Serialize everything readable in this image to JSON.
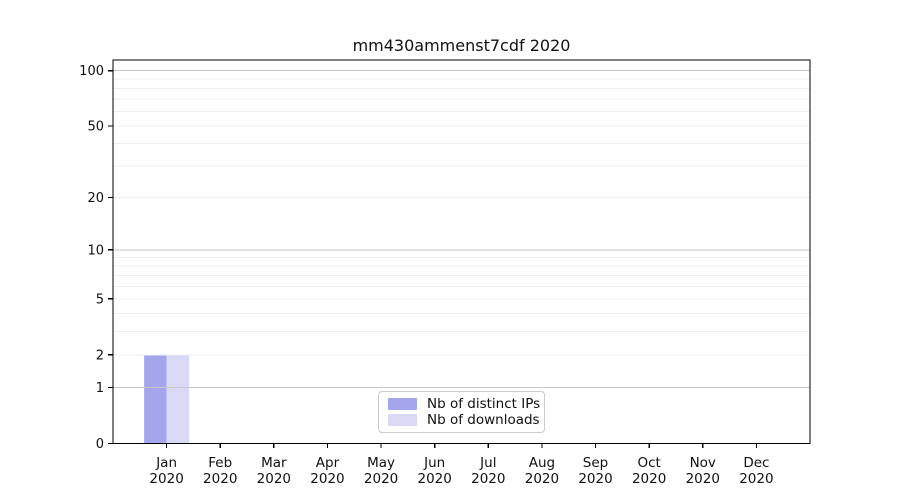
{
  "title": "mm430ammenst7cdf 2020",
  "legend": {
    "items": [
      {
        "label": "Nb of distinct IPs",
        "color": "#a5a5ee"
      },
      {
        "label": "Nb of downloads",
        "color": "#d9d9f6"
      }
    ]
  },
  "x_axis": {
    "months": [
      "Jan",
      "Feb",
      "Mar",
      "Apr",
      "May",
      "Jun",
      "Jul",
      "Aug",
      "Sep",
      "Oct",
      "Nov",
      "Dec"
    ],
    "year": "2020"
  },
  "y_axis": {
    "ticks": [
      0,
      1,
      2,
      5,
      10,
      20,
      50,
      100
    ],
    "major_grid_values": [
      1,
      10,
      100
    ],
    "minor_grid_values": [
      2,
      3,
      4,
      5,
      6,
      7,
      8,
      9,
      20,
      30,
      40,
      50,
      60,
      70,
      80,
      90
    ]
  },
  "chart_data": {
    "type": "bar",
    "title": "mm430ammenst7cdf 2020",
    "categories": [
      "Jan 2020",
      "Feb 2020",
      "Mar 2020",
      "Apr 2020",
      "May 2020",
      "Jun 2020",
      "Jul 2020",
      "Aug 2020",
      "Sep 2020",
      "Oct 2020",
      "Nov 2020",
      "Dec 2020"
    ],
    "series": [
      {
        "name": "Nb of distinct IPs",
        "color": "#a5a5ee",
        "values": [
          2,
          0,
          0,
          0,
          0,
          0,
          0,
          0,
          0,
          0,
          0,
          0
        ]
      },
      {
        "name": "Nb of downloads",
        "color": "#d9d9f6",
        "values": [
          2,
          0,
          0,
          0,
          0,
          0,
          0,
          0,
          0,
          0,
          0,
          0
        ]
      }
    ],
    "xlabel": "",
    "ylabel": "",
    "yscale": "log1p",
    "ylim": [
      0,
      115
    ],
    "yticks": [
      0,
      1,
      2,
      5,
      10,
      20,
      50,
      100
    ],
    "grid": true,
    "legend_position": "lower center"
  },
  "colors": {
    "major_grid": "#c7c7c7",
    "minor_grid": "#efefef",
    "spine": "#000000",
    "tick_text": "#111111"
  }
}
